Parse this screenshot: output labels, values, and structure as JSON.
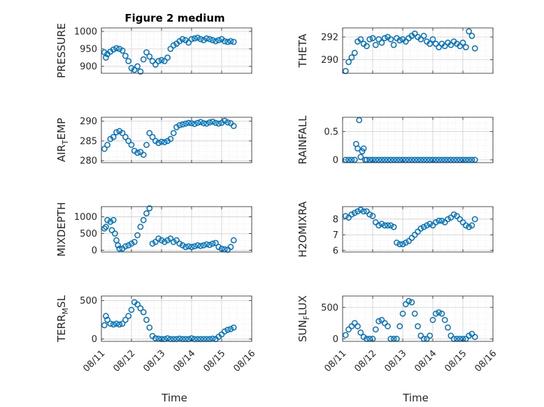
{
  "figure": {
    "title": "Figure 2 medium",
    "marker_color": "#0072BD",
    "x_ticks": [
      "08/11",
      "08/12",
      "08/13",
      "08/14",
      "08/15",
      "08/16"
    ],
    "xlabel": "Time"
  },
  "chart_data": [
    {
      "type": "scatter",
      "ylabel": "PRESSURE",
      "ylim": [
        880,
        1010
      ],
      "yticks": [
        "900",
        "950",
        "1000"
      ],
      "ytick_values": [
        900,
        950,
        1000
      ],
      "x": [
        0.1,
        0.15,
        0.2,
        0.3,
        0.4,
        0.5,
        0.6,
        0.7,
        0.8,
        0.9,
        1.0,
        1.1,
        1.2,
        1.3,
        1.4,
        1.5,
        1.6,
        1.7,
        1.8,
        1.9,
        2.0,
        2.1,
        2.2,
        2.3,
        2.4,
        2.5,
        2.6,
        2.7,
        2.8,
        2.9,
        3.0,
        3.1,
        3.2,
        3.3,
        3.4,
        3.5,
        3.6,
        3.7,
        3.8,
        3.9,
        4.0,
        4.1,
        4.2,
        4.3,
        4.4
      ],
      "y": [
        940,
        925,
        935,
        942,
        948,
        952,
        950,
        945,
        930,
        915,
        895,
        890,
        900,
        885,
        920,
        940,
        928,
        915,
        905,
        915,
        918,
        915,
        925,
        950,
        960,
        965,
        972,
        978,
        975,
        968,
        978,
        980,
        982,
        978,
        975,
        980,
        978,
        975,
        972,
        975,
        978,
        972,
        970,
        972,
        970
      ]
    },
    {
      "type": "scatter",
      "ylabel": "THETA",
      "ylim": [
        288.8,
        292.8
      ],
      "yticks": [
        "290",
        "292"
      ],
      "ytick_values": [
        290,
        292
      ],
      "x": [
        0.1,
        0.2,
        0.3,
        0.4,
        0.5,
        0.6,
        0.7,
        0.8,
        0.9,
        1.0,
        1.1,
        1.2,
        1.3,
        1.4,
        1.5,
        1.6,
        1.7,
        1.8,
        1.9,
        2.0,
        2.1,
        2.2,
        2.3,
        2.4,
        2.5,
        2.6,
        2.7,
        2.8,
        2.9,
        3.0,
        3.1,
        3.2,
        3.3,
        3.4,
        3.5,
        3.6,
        3.7,
        3.8,
        3.9,
        4.0,
        4.1,
        4.2,
        4.3,
        4.4
      ],
      "y": [
        289.0,
        289.8,
        290.2,
        290.6,
        291.6,
        291.8,
        291.4,
        291.2,
        291.8,
        291.9,
        291.3,
        291.8,
        291.5,
        291.9,
        292.0,
        291.8,
        291.3,
        291.9,
        291.7,
        291.8,
        291.6,
        291.9,
        292.1,
        292.3,
        292.0,
        291.8,
        292.1,
        291.6,
        291.4,
        291.8,
        291.4,
        291.1,
        291.4,
        291.2,
        291.5,
        291.3,
        291.6,
        291.4,
        291.2,
        291.5,
        291.1,
        292.5,
        292.1,
        291.0
      ]
    },
    {
      "type": "scatter",
      "ylabel": "AIR_TEMP",
      "ylim": [
        279.5,
        291
      ],
      "yticks": [
        "280",
        "285",
        "290"
      ],
      "ytick_values": [
        280,
        285,
        290
      ],
      "x": [
        0.1,
        0.2,
        0.3,
        0.4,
        0.5,
        0.6,
        0.7,
        0.8,
        0.9,
        1.0,
        1.1,
        1.2,
        1.3,
        1.4,
        1.5,
        1.6,
        1.7,
        1.8,
        1.9,
        2.0,
        2.1,
        2.2,
        2.3,
        2.4,
        2.5,
        2.6,
        2.7,
        2.8,
        2.9,
        3.0,
        3.1,
        3.2,
        3.3,
        3.4,
        3.5,
        3.6,
        3.7,
        3.8,
        3.9,
        4.0,
        4.1,
        4.2,
        4.3,
        4.4
      ],
      "y": [
        283,
        284,
        285.5,
        286,
        287.2,
        287.5,
        287,
        286,
        285,
        284,
        282.5,
        282,
        282.2,
        281.5,
        284,
        287,
        286,
        285,
        284.5,
        284.8,
        284.7,
        285,
        285.5,
        287,
        288.5,
        289,
        289.2,
        289.4,
        289.6,
        289.5,
        289.3,
        289.6,
        289.8,
        289.5,
        289.4,
        289.7,
        289.9,
        289.6,
        289.4,
        289.6,
        290.1,
        289.7,
        289.5,
        288.8
      ]
    },
    {
      "type": "scatter",
      "ylabel": "RAINFALL",
      "ylim": [
        -0.05,
        0.75
      ],
      "yticks": [
        "0",
        "0.5"
      ],
      "ytick_values": [
        0,
        0.5
      ],
      "x": [
        0.1,
        0.2,
        0.3,
        0.4,
        0.45,
        0.5,
        0.55,
        0.6,
        0.65,
        0.7,
        0.75,
        0.8,
        0.9,
        1.0,
        1.1,
        1.2,
        1.3,
        1.4,
        1.5,
        1.6,
        1.7,
        1.8,
        1.9,
        2.0,
        2.1,
        2.2,
        2.3,
        2.4,
        2.5,
        2.6,
        2.7,
        2.8,
        2.9,
        3.0,
        3.1,
        3.2,
        3.3,
        3.4,
        3.5,
        3.6,
        3.7,
        3.8,
        3.9,
        4.0,
        4.1,
        4.2,
        4.3,
        4.4
      ],
      "y": [
        0,
        0,
        0,
        0,
        0.28,
        0.2,
        0.7,
        0.05,
        0.15,
        0.2,
        0,
        0,
        0,
        0,
        0,
        0,
        0,
        0,
        0,
        0,
        0,
        0,
        0,
        0,
        0,
        0,
        0,
        0,
        0,
        0,
        0,
        0,
        0,
        0,
        0,
        0,
        0,
        0,
        0,
        0,
        0,
        0,
        0,
        0,
        0,
        0,
        0,
        0
      ]
    },
    {
      "type": "scatter",
      "ylabel": "MIXDEPTH",
      "ylim": [
        -50,
        1300
      ],
      "yticks": [
        "0",
        "500",
        "1000"
      ],
      "ytick_values": [
        0,
        500,
        1000
      ],
      "x": [
        0.1,
        0.15,
        0.2,
        0.3,
        0.35,
        0.4,
        0.45,
        0.5,
        0.55,
        0.6,
        0.7,
        0.8,
        0.9,
        1.0,
        1.1,
        1.2,
        1.3,
        1.4,
        1.5,
        1.6,
        1.7,
        1.8,
        1.9,
        2.0,
        2.1,
        2.2,
        2.3,
        2.4,
        2.5,
        2.6,
        2.7,
        2.8,
        2.9,
        3.0,
        3.1,
        3.2,
        3.3,
        3.4,
        3.5,
        3.6,
        3.7,
        3.8,
        3.9,
        4.0,
        4.1,
        4.2,
        4.3,
        4.4
      ],
      "y": [
        650,
        700,
        900,
        850,
        600,
        900,
        500,
        300,
        150,
        50,
        50,
        120,
        150,
        200,
        250,
        450,
        700,
        900,
        1100,
        1250,
        200,
        250,
        350,
        300,
        250,
        300,
        350,
        250,
        300,
        200,
        150,
        100,
        120,
        100,
        120,
        150,
        130,
        150,
        180,
        160,
        200,
        220,
        100,
        50,
        30,
        20,
        100,
        300
      ]
    },
    {
      "type": "scatter",
      "ylabel": "H2OMIXRA",
      "ylim": [
        5.9,
        8.8
      ],
      "yticks": [
        "6",
        "7",
        "8"
      ],
      "ytick_values": [
        6,
        7,
        8
      ],
      "x": [
        0.1,
        0.2,
        0.3,
        0.4,
        0.5,
        0.6,
        0.7,
        0.8,
        0.9,
        1.0,
        1.1,
        1.2,
        1.3,
        1.4,
        1.5,
        1.6,
        1.7,
        1.8,
        1.9,
        2.0,
        2.1,
        2.2,
        2.3,
        2.4,
        2.5,
        2.6,
        2.7,
        2.8,
        2.9,
        3.0,
        3.1,
        3.2,
        3.3,
        3.4,
        3.5,
        3.6,
        3.7,
        3.8,
        3.9,
        4.0,
        4.1,
        4.2,
        4.3,
        4.4
      ],
      "y": [
        8.2,
        8.1,
        8.3,
        8.4,
        8.5,
        8.6,
        8.5,
        8.5,
        8.3,
        8.2,
        7.8,
        7.6,
        7.7,
        7.6,
        7.6,
        7.6,
        7.5,
        6.5,
        6.4,
        6.4,
        6.5,
        6.6,
        6.8,
        7.0,
        7.2,
        7.4,
        7.5,
        7.6,
        7.7,
        7.6,
        7.8,
        7.9,
        7.9,
        7.8,
        8.0,
        8.1,
        8.3,
        8.2,
        8.0,
        7.8,
        7.6,
        7.5,
        7.6,
        8.0
      ]
    },
    {
      "type": "scatter",
      "ylabel": "TERR_MSL",
      "ylim": [
        -30,
        560
      ],
      "yticks": [
        "0",
        "500"
      ],
      "ytick_values": [
        0,
        500
      ],
      "x": [
        0.1,
        0.15,
        0.2,
        0.3,
        0.4,
        0.5,
        0.6,
        0.7,
        0.8,
        0.9,
        1.0,
        1.1,
        1.2,
        1.3,
        1.4,
        1.5,
        1.6,
        1.7,
        1.8,
        1.9,
        2.0,
        2.1,
        2.2,
        2.3,
        2.4,
        2.5,
        2.6,
        2.7,
        2.8,
        2.9,
        3.0,
        3.1,
        3.2,
        3.3,
        3.4,
        3.5,
        3.6,
        3.7,
        3.8,
        3.9,
        4.0,
        4.1,
        4.2,
        4.3,
        4.4
      ],
      "y": [
        180,
        300,
        250,
        200,
        190,
        200,
        190,
        200,
        250,
        300,
        380,
        480,
        450,
        400,
        350,
        250,
        150,
        40,
        10,
        5,
        0,
        0,
        10,
        0,
        0,
        0,
        5,
        0,
        0,
        0,
        10,
        0,
        0,
        0,
        0,
        0,
        0,
        5,
        0,
        30,
        60,
        100,
        120,
        130,
        150
      ]
    },
    {
      "type": "scatter",
      "ylabel": "SUN_FLUX",
      "ylim": [
        -40,
        680
      ],
      "yticks": [
        "0",
        "500"
      ],
      "ytick_values": [
        0,
        500
      ],
      "x": [
        0.1,
        0.2,
        0.3,
        0.4,
        0.5,
        0.6,
        0.7,
        0.8,
        0.9,
        1.0,
        1.1,
        1.2,
        1.3,
        1.4,
        1.5,
        1.6,
        1.7,
        1.8,
        1.9,
        2.0,
        2.1,
        2.2,
        2.3,
        2.4,
        2.5,
        2.6,
        2.7,
        2.8,
        2.9,
        3.0,
        3.1,
        3.2,
        3.3,
        3.4,
        3.5,
        3.6,
        3.7,
        3.8,
        3.9,
        4.0,
        4.1,
        4.2,
        4.3,
        4.4
      ],
      "y": [
        60,
        150,
        200,
        250,
        200,
        100,
        30,
        0,
        0,
        0,
        150,
        280,
        300,
        250,
        200,
        0,
        0,
        0,
        200,
        400,
        550,
        600,
        580,
        400,
        200,
        50,
        0,
        0,
        50,
        300,
        400,
        420,
        400,
        300,
        180,
        50,
        0,
        0,
        0,
        0,
        0,
        50,
        80,
        30
      ]
    }
  ]
}
